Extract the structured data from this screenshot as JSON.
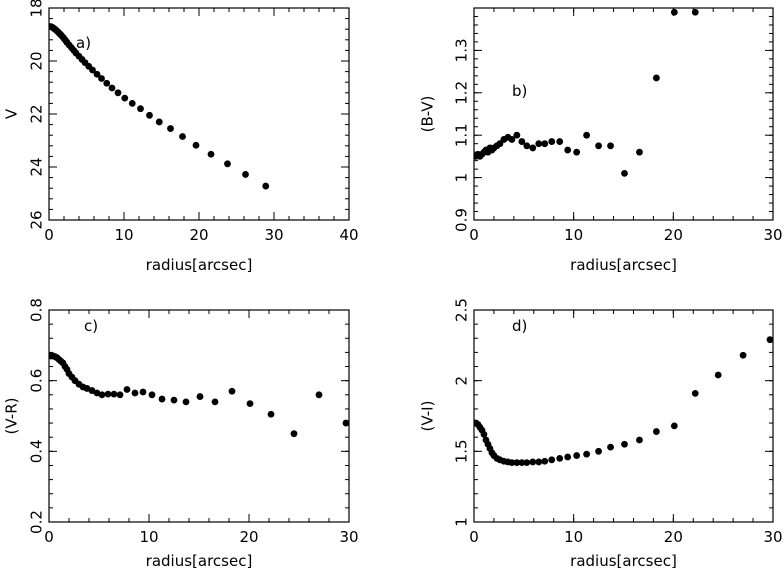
{
  "chart_data": [
    {
      "panel": "a)",
      "type": "scatter",
      "xlabel": "radius[arcsec]",
      "ylabel": "V",
      "xlim": [
        0,
        40
      ],
      "ylim": [
        26,
        18
      ],
      "y_inverted": true,
      "xticks": [
        "0",
        "10",
        "20",
        "30",
        "40"
      ],
      "yticks": [
        "18",
        "20",
        "22",
        "24",
        "26"
      ],
      "x": [
        0.2,
        0.4,
        0.6,
        0.8,
        1.0,
        1.2,
        1.4,
        1.6,
        1.8,
        2.0,
        2.2,
        2.4,
        2.7,
        3.0,
        3.3,
        3.6,
        4.0,
        4.4,
        4.8,
        5.3,
        5.8,
        6.4,
        7.0,
        7.7,
        8.4,
        9.2,
        10.1,
        11.1,
        12.2,
        13.4,
        14.7,
        16.2,
        17.8,
        19.6,
        21.6,
        23.8,
        26.2,
        28.9
      ],
      "y": [
        18.7,
        18.72,
        18.76,
        18.8,
        18.85,
        18.9,
        18.96,
        19.02,
        19.08,
        19.15,
        19.22,
        19.3,
        19.4,
        19.5,
        19.6,
        19.7,
        19.82,
        19.94,
        20.06,
        20.2,
        20.34,
        20.5,
        20.66,
        20.84,
        21.02,
        21.2,
        21.4,
        21.6,
        21.8,
        22.05,
        22.3,
        22.55,
        22.85,
        23.18,
        23.52,
        23.88,
        24.28,
        24.72
      ],
      "grid": false
    },
    {
      "panel": "b)",
      "type": "scatter",
      "xlabel": "radius[arcsec]",
      "ylabel": "(B-V)",
      "xlim": [
        0,
        30
      ],
      "ylim": [
        0.9,
        1.4
      ],
      "xticks": [
        "0",
        "10",
        "20",
        "30"
      ],
      "yticks": [
        "0.9",
        "1",
        "1.1",
        "1.2",
        "1.3"
      ],
      "x": [
        0.2,
        0.4,
        0.6,
        0.8,
        1.0,
        1.2,
        1.4,
        1.6,
        1.8,
        2.0,
        2.3,
        2.6,
        3.0,
        3.4,
        3.8,
        4.3,
        4.8,
        5.3,
        5.9,
        6.5,
        7.1,
        7.8,
        8.6,
        9.4,
        10.3,
        11.3,
        12.5,
        13.7,
        15.1,
        16.6,
        18.3,
        20.1,
        22.2
      ],
      "y": [
        1.05,
        1.055,
        1.05,
        1.055,
        1.06,
        1.065,
        1.06,
        1.07,
        1.065,
        1.07,
        1.075,
        1.08,
        1.09,
        1.095,
        1.09,
        1.1,
        1.085,
        1.075,
        1.07,
        1.08,
        1.08,
        1.085,
        1.085,
        1.065,
        1.06,
        1.1,
        1.075,
        1.075,
        1.01,
        1.06,
        1.235,
        1.39,
        1.39
      ],
      "grid": false
    },
    {
      "panel": "c)",
      "type": "scatter",
      "xlabel": "radius[arcsec]",
      "ylabel": "(V-R)",
      "xlim": [
        0,
        30
      ],
      "ylim": [
        0.2,
        0.8
      ],
      "xticks": [
        "0",
        "10",
        "20",
        "30"
      ],
      "yticks": [
        "0.2",
        "0.4",
        "0.6",
        "0.8"
      ],
      "x": [
        0.2,
        0.4,
        0.6,
        0.8,
        1.0,
        1.2,
        1.4,
        1.6,
        1.8,
        2.0,
        2.3,
        2.6,
        3.0,
        3.4,
        3.8,
        4.3,
        4.8,
        5.3,
        5.9,
        6.5,
        7.1,
        7.8,
        8.6,
        9.4,
        10.3,
        11.3,
        12.5,
        13.7,
        15.1,
        16.6,
        18.3,
        20.1,
        22.2,
        24.5,
        27.0,
        29.7
      ],
      "y": [
        0.67,
        0.67,
        0.668,
        0.665,
        0.66,
        0.655,
        0.65,
        0.64,
        0.632,
        0.62,
        0.61,
        0.6,
        0.59,
        0.582,
        0.578,
        0.572,
        0.565,
        0.56,
        0.562,
        0.562,
        0.56,
        0.575,
        0.565,
        0.568,
        0.56,
        0.548,
        0.545,
        0.54,
        0.555,
        0.54,
        0.57,
        0.535,
        0.505,
        0.45,
        0.56,
        0.48
      ],
      "grid": false
    },
    {
      "panel": "d)",
      "type": "scatter",
      "xlabel": "radius[arcsec]",
      "ylabel": "(V-I)",
      "xlim": [
        0,
        30
      ],
      "ylim": [
        1,
        2.5
      ],
      "xticks": [
        "0",
        "10",
        "20",
        "30"
      ],
      "yticks": [
        "1",
        "1.5",
        "2",
        "2.5"
      ],
      "x": [
        0.2,
        0.4,
        0.6,
        0.8,
        1.0,
        1.2,
        1.4,
        1.6,
        1.8,
        2.0,
        2.3,
        2.6,
        3.0,
        3.4,
        3.8,
        4.3,
        4.8,
        5.3,
        5.9,
        6.5,
        7.1,
        7.8,
        8.6,
        9.4,
        10.3,
        11.3,
        12.5,
        13.7,
        15.1,
        16.6,
        18.3,
        20.1,
        22.2,
        24.5,
        27.0,
        29.7
      ],
      "y": [
        1.7,
        1.69,
        1.67,
        1.65,
        1.62,
        1.58,
        1.55,
        1.52,
        1.49,
        1.47,
        1.45,
        1.44,
        1.43,
        1.425,
        1.42,
        1.42,
        1.42,
        1.42,
        1.425,
        1.425,
        1.43,
        1.44,
        1.45,
        1.46,
        1.47,
        1.48,
        1.5,
        1.53,
        1.55,
        1.58,
        1.64,
        1.68,
        1.91,
        2.04,
        2.18,
        2.29
      ],
      "grid": false
    }
  ]
}
